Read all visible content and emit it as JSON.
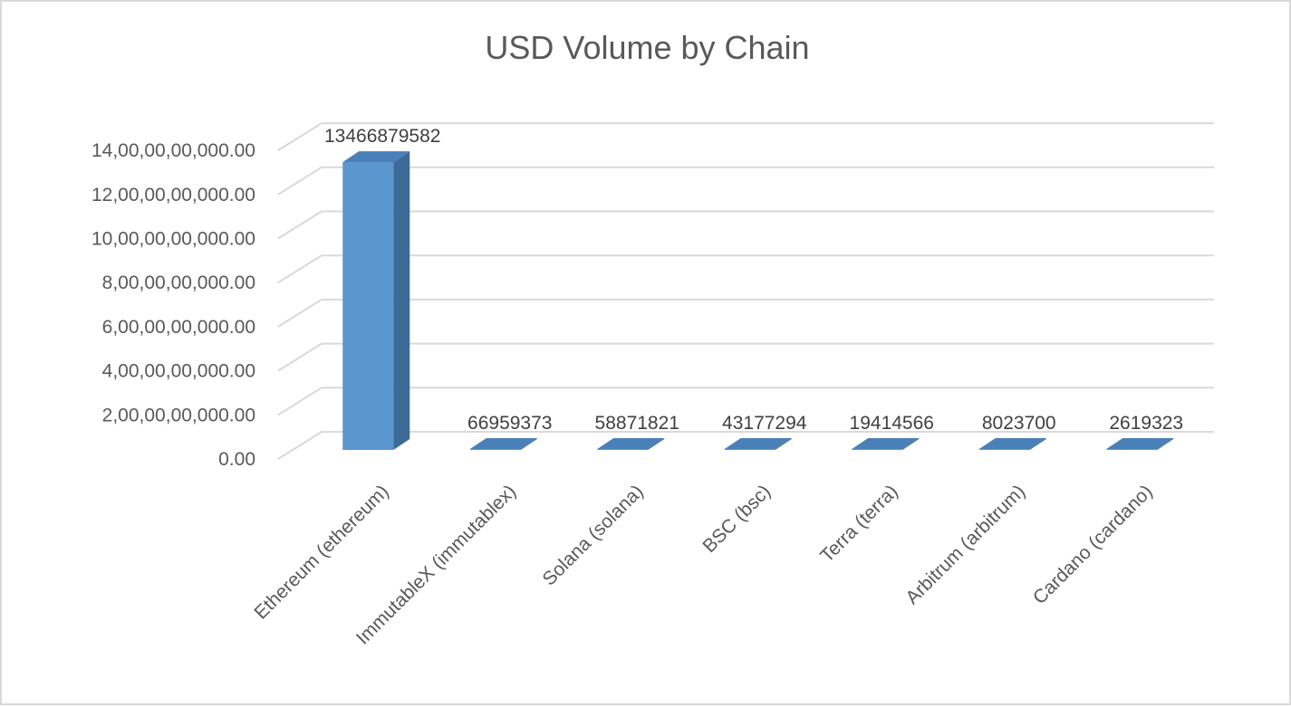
{
  "chart_data": {
    "type": "bar",
    "title": "USD Volume by Chain",
    "xlabel": "",
    "ylabel": "",
    "categories": [
      "Ethereum (ethereum)",
      "ImmutableX (immutablex)",
      "Solana (solana)",
      "BSC (bsc)",
      "Terra (terra)",
      "Arbitrum (arbitrum)",
      "Cardano (cardano)"
    ],
    "values": [
      13466879582,
      66959373,
      58871821,
      43177294,
      19414566,
      8023700,
      2619323
    ],
    "data_labels": [
      "13466879582",
      "66959373",
      "58871821",
      "43177294",
      "19414566",
      "8023700",
      "2619323"
    ],
    "y_ticks": [
      {
        "value": 0,
        "label": "0.00"
      },
      {
        "value": 2000000000,
        "label": "2,00,00,00,000.00"
      },
      {
        "value": 4000000000,
        "label": "4,00,00,00,000.00"
      },
      {
        "value": 6000000000,
        "label": "6,00,00,00,000.00"
      },
      {
        "value": 8000000000,
        "label": "8,00,00,00,000.00"
      },
      {
        "value": 10000000000,
        "label": "10,00,00,00,000.00"
      },
      {
        "value": 12000000000,
        "label": "12,00,00,00,000.00"
      },
      {
        "value": 14000000000,
        "label": "14,00,00,00,000.00"
      }
    ],
    "ylim": [
      0,
      14000000000
    ],
    "grid": true,
    "legend": "none",
    "style": "3d-column",
    "colors": {
      "bar_front": "#5b97cf",
      "bar_side": "#3e6a96",
      "bar_top": "#4a80b8",
      "grid": "#d9d9d9"
    }
  }
}
